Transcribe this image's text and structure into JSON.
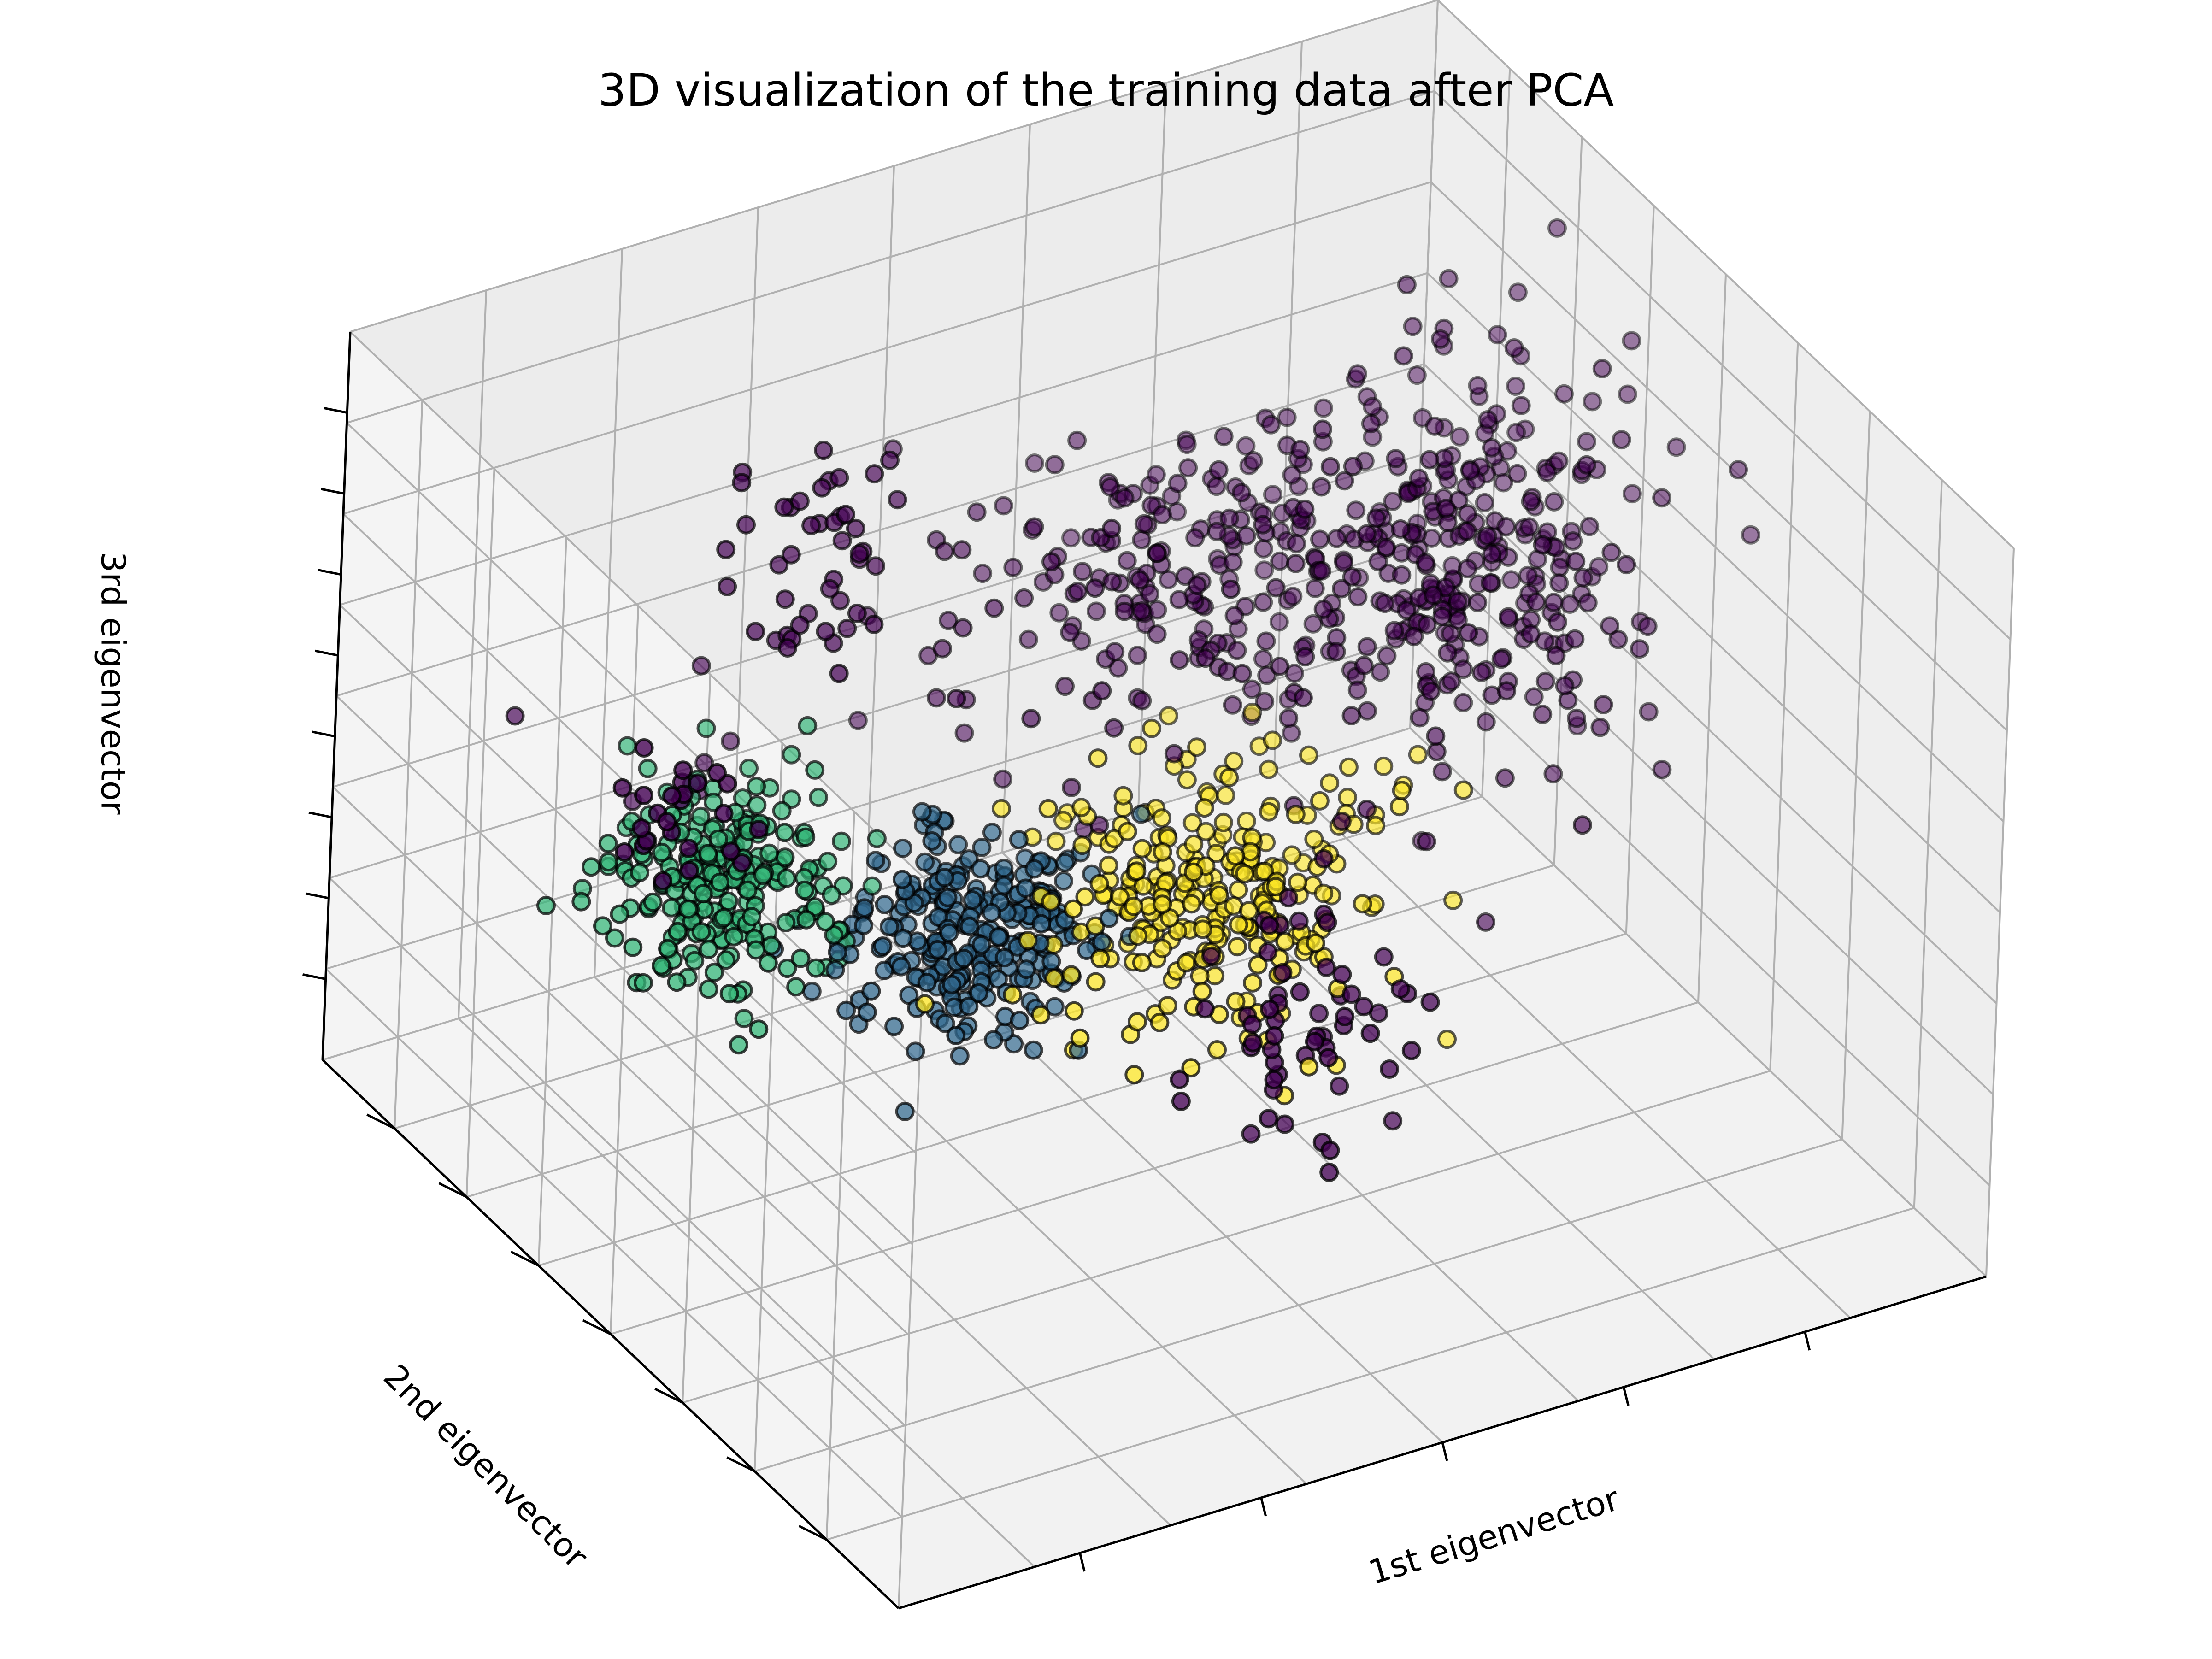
{
  "title": "3D visualization of the training data after PCA",
  "chart_data": {
    "type": "scatter3d",
    "title": "3D visualization of the training data after PCA",
    "xlabel": "1st eigenvector",
    "ylabel": "2nd eigenvector",
    "zlabel": "3rd eigenvector",
    "tick_labels_shown": false,
    "grid": true,
    "legend": "none",
    "colormap": "viridis",
    "marker_edge_color": "#000000",
    "pane_color": "#f2f2f2",
    "grid_color": "#b0b0b0",
    "series": [
      {
        "color": "#440154",
        "clusters": [
          {
            "center": [
              0.28,
              0.72,
              0.78
            ],
            "spread": [
              0.04,
              0.03,
              0.08
            ],
            "count": 45
          },
          {
            "center": [
              0.08,
              0.55,
              0.62
            ],
            "spread": [
              0.03,
              0.03,
              0.04
            ],
            "count": 25
          },
          {
            "center": [
              0.82,
              0.62,
              0.6
            ],
            "spread": [
              0.08,
              0.08,
              0.12
            ],
            "count": 320
          },
          {
            "center": [
              0.65,
              0.78,
              0.52
            ],
            "spread": [
              0.1,
              0.08,
              0.1
            ],
            "count": 200
          },
          {
            "center": [
              0.52,
              0.3,
              0.35
            ],
            "spread": [
              0.05,
              0.05,
              0.08
            ],
            "count": 60
          },
          {
            "center": [
              0.3,
              0.9,
              0.3
            ],
            "spread": [
              0.06,
              0.04,
              0.12
            ],
            "count": 8
          }
        ]
      },
      {
        "color": "#fde725",
        "clusters": [
          {
            "center": [
              0.55,
              0.5,
              0.35
            ],
            "spread": [
              0.07,
              0.07,
              0.07
            ],
            "count": 280
          }
        ]
      },
      {
        "color": "#31688e",
        "clusters": [
          {
            "center": [
              0.38,
              0.6,
              0.3
            ],
            "spread": [
              0.05,
              0.05,
              0.06
            ],
            "count": 260
          }
        ]
      },
      {
        "color": "#35b779",
        "clusters": [
          {
            "center": [
              0.2,
              0.7,
              0.38
            ],
            "spread": [
              0.05,
              0.05,
              0.06
            ],
            "count": 240
          }
        ]
      }
    ]
  }
}
